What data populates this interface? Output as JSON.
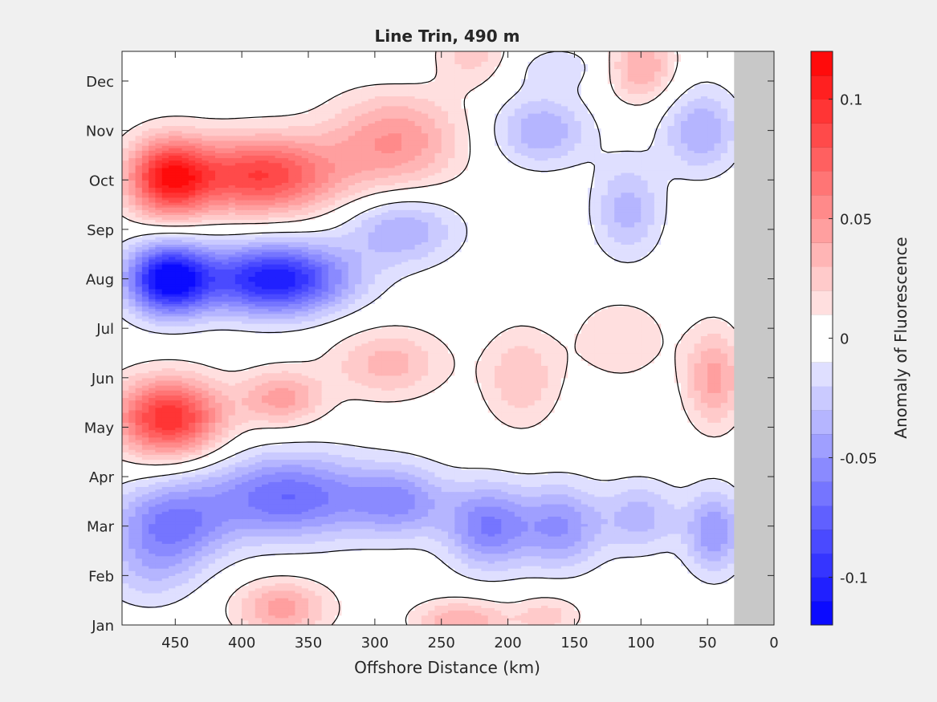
{
  "chart_data": {
    "type": "heatmap",
    "title": "Line Trin, 490 m",
    "xlabel": "Offshore Distance (km)",
    "ylabel": "",
    "xlim": [
      490,
      0
    ],
    "ylim": [
      0,
      11.6
    ],
    "x_reversed": true,
    "x_ticks": [
      450,
      400,
      350,
      300,
      250,
      200,
      150,
      100,
      50,
      0
    ],
    "y_ticks": [
      {
        "label": "Jan",
        "value": 0
      },
      {
        "label": "Feb",
        "value": 1
      },
      {
        "label": "Mar",
        "value": 2
      },
      {
        "label": "Apr",
        "value": 3
      },
      {
        "label": "May",
        "value": 4
      },
      {
        "label": "Jun",
        "value": 5
      },
      {
        "label": "Jul",
        "value": 6
      },
      {
        "label": "Aug",
        "value": 7
      },
      {
        "label": "Sep",
        "value": 8
      },
      {
        "label": "Oct",
        "value": 9
      },
      {
        "label": "Nov",
        "value": 10
      },
      {
        "label": "Dec",
        "value": 11
      }
    ],
    "no_data_region_km": [
      30,
      0
    ],
    "colorbar": {
      "label": "Anomaly of Fluorescence",
      "min": -0.12,
      "max": 0.12,
      "step": 0.01,
      "ticks": [
        {
          "label": "0.1",
          "value": 0.1
        },
        {
          "label": "0.05",
          "value": 0.05
        },
        {
          "label": "0",
          "value": 0
        },
        {
          "label": "-0.05",
          "value": -0.05
        },
        {
          "label": "-0.1",
          "value": -0.1
        }
      ]
    },
    "anomaly_features": [
      {
        "x": 455,
        "y": 9.05,
        "amp": 0.1,
        "sx": 22,
        "sy": 0.55
      },
      {
        "x": 385,
        "y": 9.1,
        "amp": 0.09,
        "sx": 40,
        "sy": 0.55
      },
      {
        "x": 285,
        "y": 9.8,
        "amp": 0.05,
        "sx": 35,
        "sy": 0.7
      },
      {
        "x": 225,
        "y": 11.4,
        "amp": 0.04,
        "sx": 25,
        "sy": 0.4
      },
      {
        "x": 100,
        "y": 11.3,
        "amp": 0.045,
        "sx": 18,
        "sy": 0.5
      },
      {
        "x": 455,
        "y": 7.0,
        "amp": -0.12,
        "sx": 22,
        "sy": 0.5
      },
      {
        "x": 375,
        "y": 7.0,
        "amp": -0.11,
        "sx": 38,
        "sy": 0.5
      },
      {
        "x": 280,
        "y": 8.0,
        "amp": -0.04,
        "sx": 30,
        "sy": 0.5
      },
      {
        "x": 175,
        "y": 10.0,
        "amp": -0.04,
        "sx": 25,
        "sy": 0.5
      },
      {
        "x": 110,
        "y": 8.4,
        "amp": -0.035,
        "sx": 18,
        "sy": 0.7
      },
      {
        "x": 55,
        "y": 10.0,
        "amp": -0.04,
        "sx": 20,
        "sy": 0.6
      },
      {
        "x": 200,
        "y": 11.3,
        "amp": -0.02,
        "sx": 60,
        "sy": 0.35
      },
      {
        "x": 455,
        "y": 4.2,
        "amp": 0.1,
        "sx": 28,
        "sy": 0.55
      },
      {
        "x": 370,
        "y": 4.6,
        "amp": 0.045,
        "sx": 22,
        "sy": 0.4
      },
      {
        "x": 290,
        "y": 5.3,
        "amp": 0.035,
        "sx": 30,
        "sy": 0.5
      },
      {
        "x": 190,
        "y": 5.0,
        "amp": 0.03,
        "sx": 20,
        "sy": 0.7
      },
      {
        "x": 115,
        "y": 5.8,
        "amp": 0.02,
        "sx": 25,
        "sy": 0.6
      },
      {
        "x": 45,
        "y": 5.0,
        "amp": 0.045,
        "sx": 15,
        "sy": 0.7
      },
      {
        "x": 455,
        "y": 2.0,
        "amp": -0.06,
        "sx": 30,
        "sy": 0.6
      },
      {
        "x": 365,
        "y": 2.6,
        "amp": -0.07,
        "sx": 45,
        "sy": 0.6
      },
      {
        "x": 280,
        "y": 2.5,
        "amp": -0.045,
        "sx": 25,
        "sy": 0.5
      },
      {
        "x": 215,
        "y": 2.0,
        "amp": -0.06,
        "sx": 22,
        "sy": 0.6
      },
      {
        "x": 160,
        "y": 2.0,
        "amp": -0.05,
        "sx": 22,
        "sy": 0.6
      },
      {
        "x": 100,
        "y": 2.2,
        "amp": -0.035,
        "sx": 20,
        "sy": 0.5
      },
      {
        "x": 45,
        "y": 1.9,
        "amp": -0.05,
        "sx": 15,
        "sy": 0.6
      },
      {
        "x": 470,
        "y": 1.0,
        "amp": -0.02,
        "sx": 25,
        "sy": 0.5
      },
      {
        "x": 370,
        "y": 0.35,
        "amp": 0.045,
        "sx": 25,
        "sy": 0.4
      },
      {
        "x": 235,
        "y": 0.1,
        "amp": 0.04,
        "sx": 25,
        "sy": 0.3
      },
      {
        "x": 170,
        "y": 0.2,
        "amp": 0.025,
        "sx": 18,
        "sy": 0.3
      }
    ]
  }
}
